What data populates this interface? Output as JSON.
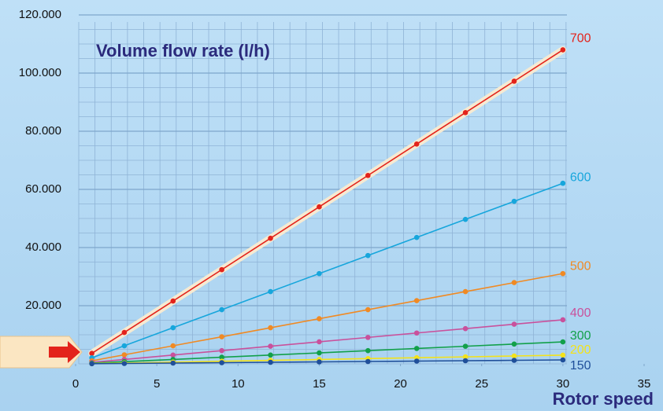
{
  "chart_data": {
    "type": "line",
    "title": "Volume flow rate (l/h)",
    "x_label": "Rotor speed",
    "x": [
      1,
      3,
      6,
      9,
      12,
      15,
      18,
      21,
      24,
      27,
      30
    ],
    "xlim": [
      0,
      35
    ],
    "xticks": [
      0,
      5,
      10,
      15,
      20,
      25,
      30,
      35
    ],
    "ylim": [
      0,
      120000
    ],
    "yticks": [
      {
        "value": 20000,
        "label": "20.000"
      },
      {
        "value": 40000,
        "label": "40.000"
      },
      {
        "value": 60000,
        "label": "60.000"
      },
      {
        "value": 80000,
        "label": "80.000"
      },
      {
        "value": 100000,
        "label": "100.000"
      },
      {
        "value": 120000,
        "label": "120.000"
      }
    ],
    "grid": true,
    "series": [
      {
        "name": "700",
        "color": "#e3231b",
        "values": [
          3600,
          10800,
          21600,
          32400,
          43200,
          54000,
          64800,
          75600,
          86400,
          97200,
          108000
        ]
      },
      {
        "name": "600",
        "color": "#17a6dc",
        "values": [
          2070,
          6210,
          12420,
          18630,
          24840,
          31050,
          37260,
          43470,
          49680,
          55890,
          62100
        ]
      },
      {
        "name": "500",
        "color": "#f08a24",
        "values": [
          1035,
          3105,
          6210,
          9315,
          12420,
          15525,
          18630,
          21735,
          24840,
          27945,
          31050
        ]
      },
      {
        "name": "400",
        "color": "#c9519c",
        "values": [
          505,
          1515,
          3030,
          4545,
          6060,
          7575,
          9090,
          10605,
          12120,
          13635,
          15150
        ]
      },
      {
        "name": "300",
        "color": "#12a04a",
        "values": [
          252,
          756,
          1512,
          2268,
          3024,
          3780,
          4536,
          5292,
          6048,
          6804,
          7560
        ]
      },
      {
        "name": "200",
        "color": "#f3e21a",
        "values": [
          100,
          300,
          600,
          900,
          1200,
          1500,
          1800,
          2100,
          2400,
          2700,
          3000
        ]
      },
      {
        "name": "150",
        "color": "#1f4f9a",
        "values": [
          45,
          135,
          270,
          405,
          540,
          675,
          810,
          945,
          1080,
          1215,
          1350
        ]
      }
    ]
  }
}
